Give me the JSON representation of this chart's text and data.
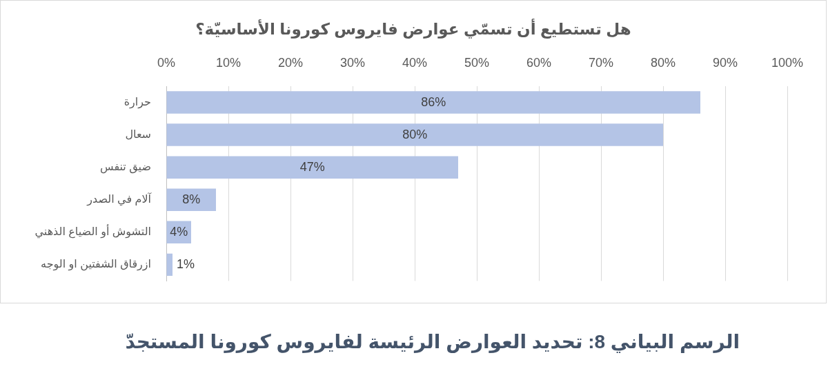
{
  "chart_data": {
    "type": "bar",
    "orientation": "horizontal",
    "title": "هل تستطيع أن تسمّي عوارض فايروس كورونا الأساسيّة؟",
    "categories": [
      "حرارة",
      "سعال",
      "ضيق تنفس",
      "آلام في الصدر",
      "التشوش أو الضياع الذهني",
      "ازرقاق الشفتين او الوجه"
    ],
    "values": [
      86,
      80,
      47,
      8,
      4,
      1
    ],
    "value_labels": [
      "86%",
      "80%",
      "47%",
      "8%",
      "4%",
      "1%"
    ],
    "color": "#b4c4e6",
    "xlim": [
      0,
      100
    ],
    "xticks": [
      {
        "value": 0,
        "label": "0%"
      },
      {
        "value": 10,
        "label": "10%"
      },
      {
        "value": 20,
        "label": "20%"
      },
      {
        "value": 30,
        "label": "30%"
      },
      {
        "value": 40,
        "label": "40%"
      },
      {
        "value": 50,
        "label": "50%"
      },
      {
        "value": 60,
        "label": "60%"
      },
      {
        "value": 70,
        "label": "70%"
      },
      {
        "value": 80,
        "label": "80%"
      },
      {
        "value": 90,
        "label": "90%"
      },
      {
        "value": 100,
        "label": "100%"
      }
    ],
    "grid": "x",
    "annotations": [
      "الرسم البياني 8: تحديد العوارض الرئيسة لفايروس كورونا المستجدّ"
    ]
  }
}
